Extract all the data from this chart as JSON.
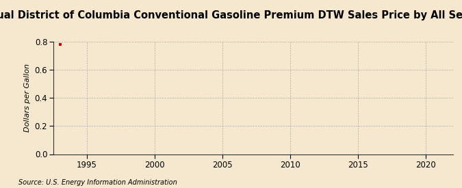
{
  "title": "Annual District of Columbia Conventional Gasoline Premium DTW Sales Price by All Sellers",
  "ylabel": "Dollars per Gallon",
  "source_text": "Source: U.S. Energy Information Administration",
  "xlim": [
    1992.5,
    2022
  ],
  "ylim": [
    0.0,
    0.8
  ],
  "yticks": [
    0.0,
    0.2,
    0.4,
    0.6,
    0.8
  ],
  "xticks": [
    1995,
    2000,
    2005,
    2010,
    2015,
    2020
  ],
  "data_x": [
    1993
  ],
  "data_y": [
    0.779
  ],
  "marker_color": "#cc0000",
  "background_color": "#f5e8ce",
  "plot_bg_color": "#f5e8ce",
  "grid_color": "#aaaaaa",
  "spine_color": "#333333",
  "title_fontsize": 10.5,
  "label_fontsize": 8,
  "tick_fontsize": 8.5,
  "source_fontsize": 7
}
